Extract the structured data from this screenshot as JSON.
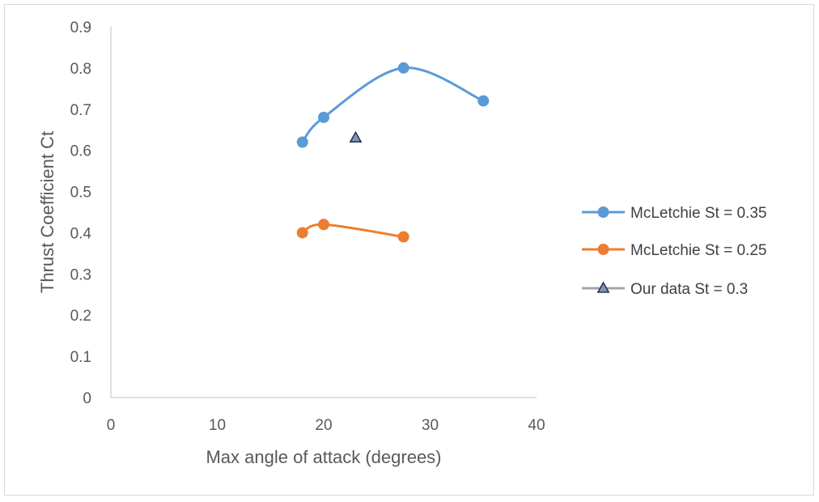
{
  "chart_data": {
    "type": "scatter",
    "title": "",
    "xlabel": "Max angle of attack (degrees)",
    "ylabel": "Thrust Coefficient Ct",
    "xlim": [
      0,
      40
    ],
    "ylim": [
      0,
      0.9
    ],
    "x_ticks": [
      "0",
      "10",
      "20",
      "30",
      "40"
    ],
    "y_ticks": [
      "0",
      "0.1",
      "0.2",
      "0.3",
      "0.4",
      "0.5",
      "0.6",
      "0.7",
      "0.8",
      "0.9"
    ],
    "grid": false,
    "legend_position": "right",
    "series": [
      {
        "name": "McLetchie St = 0.35",
        "color": "#5b9bd5",
        "marker": "circle",
        "line": "smooth",
        "points": [
          [
            18,
            0.62
          ],
          [
            20,
            0.68
          ],
          [
            27.5,
            0.8
          ],
          [
            35,
            0.72
          ]
        ]
      },
      {
        "name": "McLetchie St = 0.25",
        "color": "#ed7d31",
        "marker": "circle",
        "line": "smooth",
        "points": [
          [
            18,
            0.4
          ],
          [
            20,
            0.42
          ],
          [
            27.5,
            0.39
          ]
        ]
      },
      {
        "name": "Our data St = 0.3",
        "color": "#a5a5a5",
        "marker_fill": "#8497b0",
        "marker_stroke": "#1f2d5c",
        "marker": "triangle",
        "line": "none",
        "points": [
          [
            23,
            0.63
          ]
        ]
      }
    ]
  }
}
